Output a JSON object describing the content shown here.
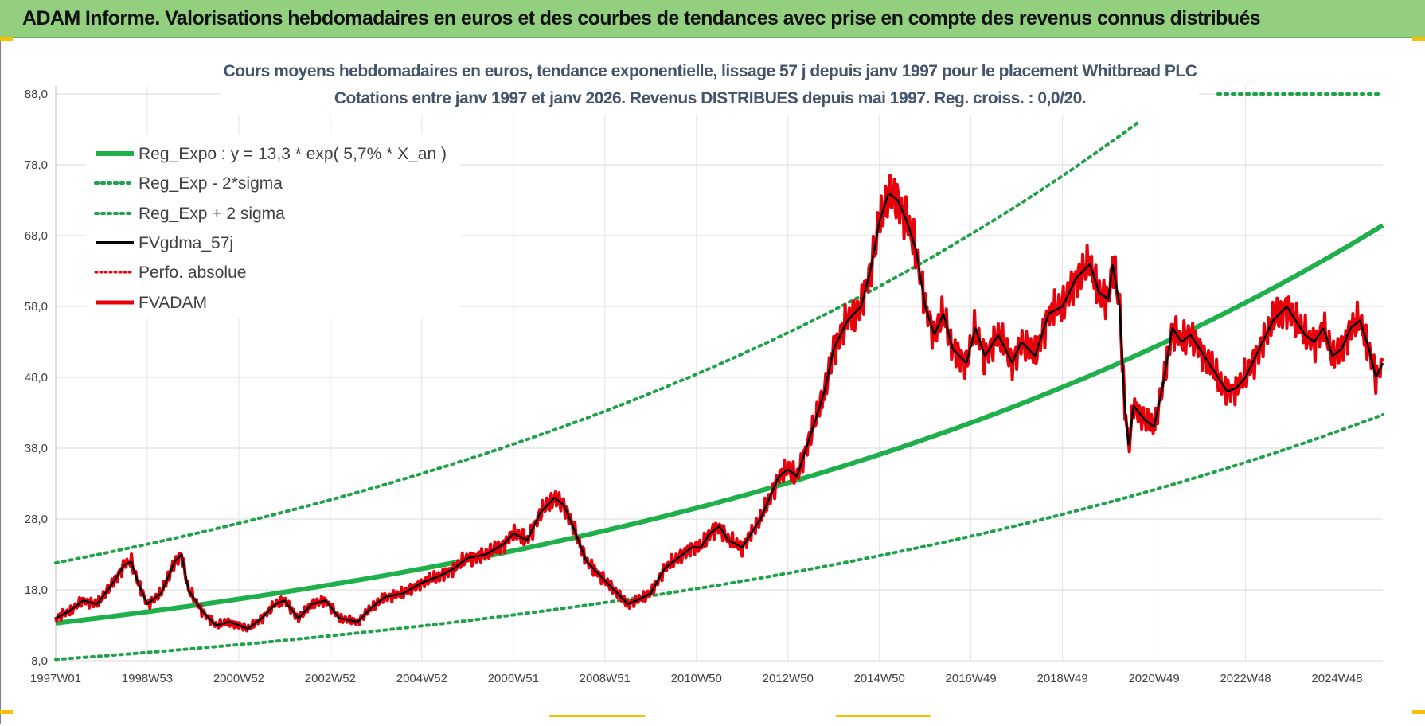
{
  "header": {
    "title": "ADAM Informe. Valorisations hebdomadaires en euros et des courbes de tendances avec prise en compte des revenus connus distribués"
  },
  "colors": {
    "header_bg": "#92d07f",
    "trend_green": "#1fb04c",
    "band_green": "#1fa24a",
    "smooth_black": "#000000",
    "price_red": "#e8000b",
    "grid": "#d9d9d9"
  },
  "chart_data": {
    "type": "line",
    "title_line1": "Cours moyens hebdomadaires en euros, tendance exponentielle, lissage 57 j depuis janv 1997 pour le placement Whitbread PLC",
    "title_line2": "Cotations entre janv 1997 et janv 2026. Revenus DISTRIBUES depuis mai 1997. Reg. croiss. : 0,0/20.",
    "ylim": [
      8,
      88
    ],
    "yticks": [
      "88,0",
      "78,0",
      "68,0",
      "58,0",
      "48,0",
      "38,0",
      "28,0",
      "18,0",
      "8,0"
    ],
    "xlim": [
      1997.0,
      2026.0
    ],
    "xticks": [
      {
        "label": "1997W01",
        "x": 1997.0
      },
      {
        "label": "1998W53",
        "x": 1999.0
      },
      {
        "label": "2000W52",
        "x": 2001.0
      },
      {
        "label": "2002W52",
        "x": 2003.0
      },
      {
        "label": "2004W52",
        "x": 2005.0
      },
      {
        "label": "2006W51",
        "x": 2007.0
      },
      {
        "label": "2008W51",
        "x": 2009.0
      },
      {
        "label": "2010W50",
        "x": 2011.0
      },
      {
        "label": "2012W50",
        "x": 2013.0
      },
      {
        "label": "2014W50",
        "x": 2015.0
      },
      {
        "label": "2016W49",
        "x": 2017.0
      },
      {
        "label": "2018W49",
        "x": 2019.0
      },
      {
        "label": "2020W49",
        "x": 2021.0
      },
      {
        "label": "2022W48",
        "x": 2023.0
      },
      {
        "label": "2024W48",
        "x": 2025.0
      }
    ],
    "legend": [
      {
        "key": "reg_expo",
        "label": "Reg_Expo : y = 13,3 * exp( 5,7% *  X_an )"
      },
      {
        "key": "reg_minus",
        "label": "Reg_Exp - 2*sigma"
      },
      {
        "key": "reg_plus",
        "label": "Reg_Exp + 2 sigma"
      },
      {
        "key": "fvgdma",
        "label": "FVgdma_57j"
      },
      {
        "key": "perfo",
        "label": "Perfo. absolue"
      },
      {
        "key": "fvadam",
        "label": "FVADAM"
      }
    ],
    "regression": {
      "a": 13.3,
      "growth_rate": 0.057,
      "minus_2sigma_factor": 0.615,
      "plus_2sigma_factor": 1.64,
      "upper_band_cap": 88
    },
    "series": [
      {
        "name": "FVADAM",
        "points": [
          [
            1997.0,
            14.0
          ],
          [
            1997.3,
            15.0
          ],
          [
            1997.6,
            16.5
          ],
          [
            1997.9,
            16.0
          ],
          [
            1998.2,
            18.5
          ],
          [
            1998.5,
            21.5
          ],
          [
            1998.65,
            22.0
          ],
          [
            1998.8,
            19.0
          ],
          [
            1999.0,
            16.0
          ],
          [
            1999.3,
            17.5
          ],
          [
            1999.6,
            22.0
          ],
          [
            1999.75,
            23.0
          ],
          [
            1999.9,
            18.0
          ],
          [
            2000.2,
            15.0
          ],
          [
            2000.5,
            13.0
          ],
          [
            2000.8,
            13.5
          ],
          [
            2001.2,
            12.5
          ],
          [
            2001.5,
            14.0
          ],
          [
            2001.8,
            16.0
          ],
          [
            2002.0,
            16.5
          ],
          [
            2002.3,
            14.0
          ],
          [
            2002.6,
            16.0
          ],
          [
            2002.9,
            16.5
          ],
          [
            2003.2,
            14.0
          ],
          [
            2003.6,
            13.5
          ],
          [
            2003.9,
            15.5
          ],
          [
            2004.2,
            17.0
          ],
          [
            2004.6,
            17.5
          ],
          [
            2005.0,
            19.0
          ],
          [
            2005.4,
            20.0
          ],
          [
            2005.7,
            21.0
          ],
          [
            2006.0,
            22.5
          ],
          [
            2006.4,
            23.0
          ],
          [
            2006.8,
            24.5
          ],
          [
            2007.0,
            26.0
          ],
          [
            2007.3,
            25.0
          ],
          [
            2007.6,
            29.0
          ],
          [
            2007.9,
            31.0
          ],
          [
            2008.1,
            30.0
          ],
          [
            2008.3,
            27.0
          ],
          [
            2008.6,
            22.0
          ],
          [
            2008.9,
            20.0
          ],
          [
            2009.2,
            18.0
          ],
          [
            2009.5,
            16.0
          ],
          [
            2009.7,
            16.5
          ],
          [
            2010.0,
            17.5
          ],
          [
            2010.3,
            21.0
          ],
          [
            2010.6,
            22.5
          ],
          [
            2010.9,
            24.0
          ],
          [
            2011.1,
            24.0
          ],
          [
            2011.3,
            26.0
          ],
          [
            2011.5,
            27.0
          ],
          [
            2011.7,
            25.0
          ],
          [
            2012.0,
            24.0
          ],
          [
            2012.2,
            26.0
          ],
          [
            2012.4,
            28.0
          ],
          [
            2012.6,
            31.0
          ],
          [
            2012.8,
            34.0
          ],
          [
            2013.0,
            35.0
          ],
          [
            2013.2,
            34.0
          ],
          [
            2013.4,
            38.0
          ],
          [
            2013.6,
            42.0
          ],
          [
            2013.8,
            46.0
          ],
          [
            2014.0,
            52.0
          ],
          [
            2014.3,
            56.0
          ],
          [
            2014.6,
            58.0
          ],
          [
            2014.8,
            63.0
          ],
          [
            2015.0,
            70.0
          ],
          [
            2015.2,
            74.0
          ],
          [
            2015.4,
            73.0
          ],
          [
            2015.6,
            70.0
          ],
          [
            2015.8,
            66.0
          ],
          [
            2016.0,
            58.0
          ],
          [
            2016.2,
            54.0
          ],
          [
            2016.4,
            57.0
          ],
          [
            2016.6,
            52.0
          ],
          [
            2016.9,
            50.0
          ],
          [
            2017.1,
            55.0
          ],
          [
            2017.3,
            51.0
          ],
          [
            2017.6,
            54.0
          ],
          [
            2017.9,
            50.0
          ],
          [
            2018.1,
            53.0
          ],
          [
            2018.4,
            51.0
          ],
          [
            2018.7,
            57.0
          ],
          [
            2019.0,
            58.0
          ],
          [
            2019.3,
            62.0
          ],
          [
            2019.6,
            64.0
          ],
          [
            2019.8,
            60.0
          ],
          [
            2020.0,
            59.0
          ],
          [
            2020.1,
            64.0
          ],
          [
            2020.25,
            58.0
          ],
          [
            2020.35,
            45.0
          ],
          [
            2020.45,
            38.0
          ],
          [
            2020.55,
            44.0
          ],
          [
            2020.8,
            42.0
          ],
          [
            2021.0,
            41.0
          ],
          [
            2021.2,
            47.0
          ],
          [
            2021.4,
            55.0
          ],
          [
            2021.6,
            53.0
          ],
          [
            2021.8,
            54.0
          ],
          [
            2022.0,
            52.0
          ],
          [
            2022.2,
            50.0
          ],
          [
            2022.4,
            48.0
          ],
          [
            2022.6,
            46.0
          ],
          [
            2022.8,
            46.5
          ],
          [
            2023.0,
            48.0
          ],
          [
            2023.3,
            52.0
          ],
          [
            2023.6,
            56.0
          ],
          [
            2023.9,
            58.0
          ],
          [
            2024.1,
            56.0
          ],
          [
            2024.3,
            54.0
          ],
          [
            2024.5,
            53.0
          ],
          [
            2024.7,
            55.0
          ],
          [
            2024.9,
            51.0
          ],
          [
            2025.1,
            52.0
          ],
          [
            2025.3,
            55.0
          ],
          [
            2025.5,
            56.0
          ],
          [
            2025.7,
            52.0
          ],
          [
            2025.85,
            48.0
          ],
          [
            2026.0,
            50.0
          ]
        ]
      }
    ]
  }
}
